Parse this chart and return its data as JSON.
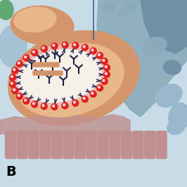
{
  "bg_color": "#d4e8f0",
  "title_letter": "B",
  "colors": {
    "outer_cell_blue": "#9ab8cc",
    "glom_orange": "#d4956a",
    "glom_light_orange": "#e8b88a",
    "membrane_pink": "#e8c0c0",
    "lumen_white": "#f5f0e8",
    "podocyte_mauve": "#c09090",
    "podocyte_light": "#d4b0b0",
    "capillary_blue": "#a0b8cc",
    "red_dot": "#e02020",
    "dark_stem": "#303060",
    "antibody_dark": "#202040",
    "green_accent": "#60a870",
    "line_blue": "#4060a0"
  }
}
